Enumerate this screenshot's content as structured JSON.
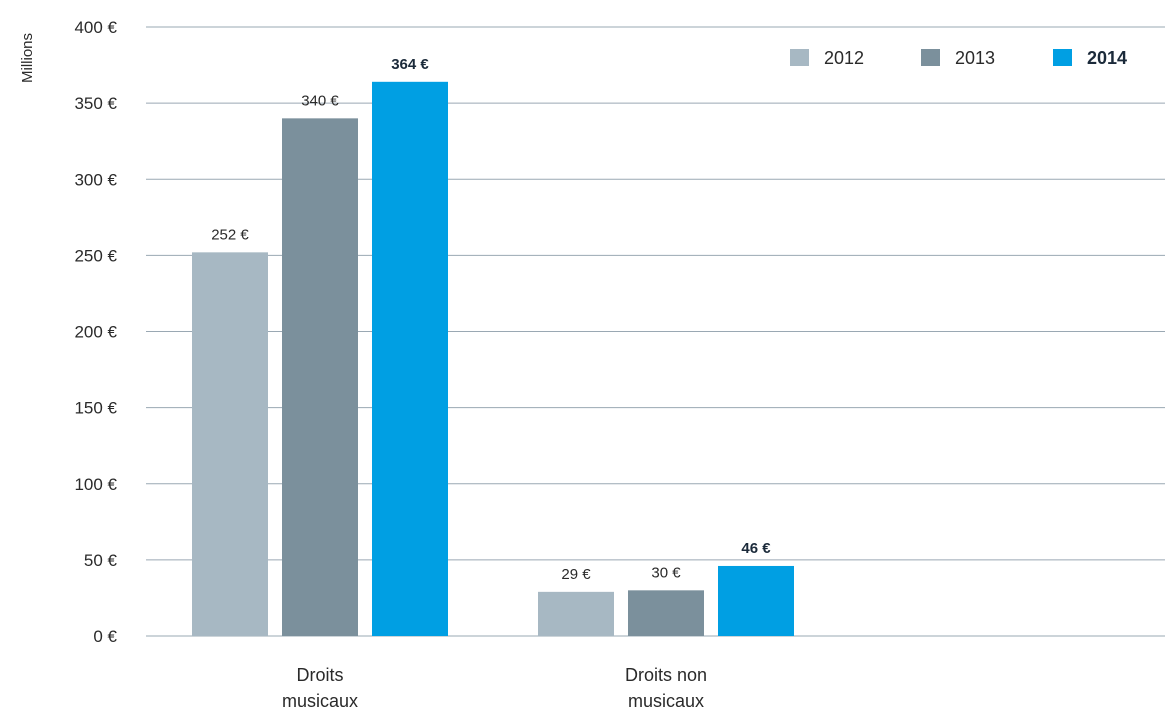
{
  "chart_data": {
    "type": "bar",
    "ylabel": "Millions",
    "ylim": [
      0,
      400
    ],
    "yticks": [
      "0 €",
      "50 €",
      "100 €",
      "150 €",
      "200 €",
      "250 €",
      "300 €",
      "350 €",
      "400 €"
    ],
    "ytick_values": [
      0,
      50,
      100,
      150,
      200,
      250,
      300,
      350,
      400
    ],
    "categories": [
      {
        "line1": "Droits",
        "line2": "musicaux"
      },
      {
        "line1": "Droits non",
        "line2": "musicaux"
      }
    ],
    "series": [
      {
        "name": "2012",
        "color": "#a7b8c3",
        "bold": false,
        "values": [
          252,
          29
        ],
        "labels": [
          "252 €",
          "29 €"
        ]
      },
      {
        "name": "2013",
        "color": "#7b909c",
        "bold": false,
        "values": [
          340,
          30
        ],
        "labels": [
          "340 €",
          "30 €"
        ]
      },
      {
        "name": "2014",
        "color": "#009fe3",
        "bold": true,
        "values": [
          364,
          46
        ],
        "labels": [
          "364 €",
          "46 €"
        ]
      }
    ],
    "grid": true,
    "legend_position": "top-right"
  }
}
